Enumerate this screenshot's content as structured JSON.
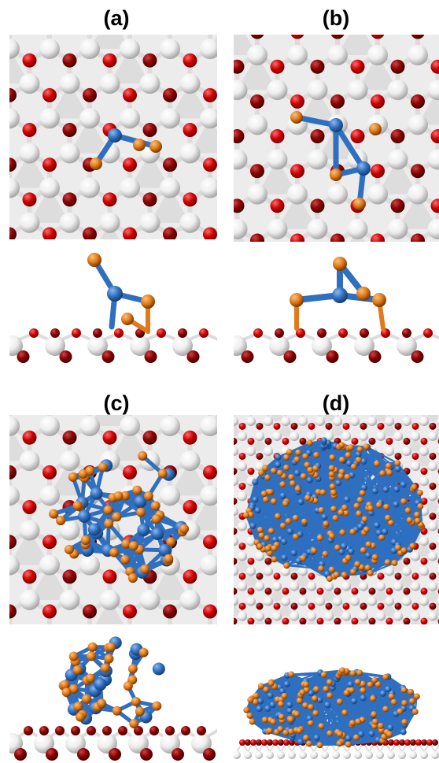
{
  "figure": {
    "panels": [
      {
        "id": "a",
        "label": "(a)",
        "cluster_size": "small",
        "cluster_shape": "chain"
      },
      {
        "id": "b",
        "label": "(b)",
        "cluster_size": "small",
        "cluster_shape": "triangle"
      },
      {
        "id": "c",
        "label": "(c)",
        "cluster_size": "medium",
        "cluster_shape": "cage"
      },
      {
        "id": "d",
        "label": "(d)",
        "cluster_size": "large",
        "cluster_shape": "slab"
      }
    ],
    "views": [
      "top",
      "side"
    ]
  },
  "colors": {
    "oxygen": "#cc0000",
    "oxygen_dark": "#8a0000",
    "substrate_metal": "#eeeeee",
    "substrate_edge": "#a8a8a8",
    "cluster_blue": "#2f6fc0",
    "cluster_orange": "#e07a1a",
    "background_tile": "#d9d9d9"
  }
}
